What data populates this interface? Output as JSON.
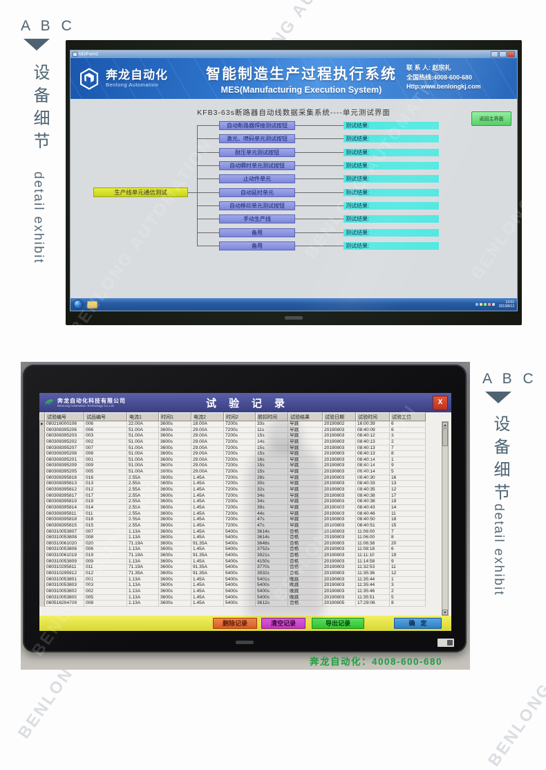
{
  "side_markers": {
    "abc": "A B C",
    "zh": "设备细节",
    "en": "detail exhibit"
  },
  "watermark": "BENLONG AUTOMATION",
  "top_monitor": {
    "window_title": "MDIForm1",
    "banner": {
      "logo_zh": "奔龙自动化",
      "logo_en": "Benlong Automation",
      "title_zh": "智能制造生产过程执行系统",
      "title_en": "MES(Manufacturing Execution System)",
      "contact_line1": "联 系 人: 赵宗礼",
      "contact_line2": "全国热线:4008-600-680",
      "contact_line3": "Http:www.benlongkj.com"
    },
    "subtitle": "KFB3-63s断路器自动线数据采集系统----单元测试界面",
    "return_button": "返回主界面",
    "source_node": "生产线单元通信测试",
    "result_label": "测试结果:",
    "flow_buttons": [
      "自动断路器焊接测试按钮",
      "激光、喷码单元测试按钮",
      "耐压单元测试按钮",
      "自动瞬时单元测试按钮",
      "止动件单元",
      "自动延时单元",
      "自动移印单元测试按钮",
      "手动生产线",
      "备用",
      "备用"
    ],
    "taskbar": {
      "time": "13:52",
      "date": "2019/8/13"
    }
  },
  "bottom_monitor": {
    "titlebar": {
      "company_zh": "奔龙自动化科技有限公司",
      "company_en": "BenLong Automation Technology Co.,Ltd",
      "title": "试验记录",
      "close": "X"
    },
    "table": {
      "headers": [
        "试验编号",
        "试品编号",
        "电流1",
        "时间1",
        "电流2",
        "时间2",
        "脱扣时间",
        "试验结果",
        "试验日期",
        "试验时间",
        "试验工位"
      ],
      "rows": [
        [
          "080216000106",
          "006",
          "22.00A",
          "3600s",
          "18.00A",
          "7200s",
          "33s",
          "早跳",
          "20190802",
          "16:00:39",
          "6"
        ],
        [
          "080308395206",
          "006",
          "51.00A",
          "3600s",
          "29.00A",
          "7200s",
          "11s",
          "早跳",
          "20190803",
          "08:40:09",
          "6"
        ],
        [
          "080308395203",
          "003",
          "51.00A",
          "3600s",
          "29.00A",
          "7200s",
          "15s",
          "早跳",
          "20190803",
          "08:40:12",
          "3"
        ],
        [
          "080308395202",
          "002",
          "51.00A",
          "3600s",
          "29.00A",
          "7200s",
          "14s",
          "早跳",
          "20190803",
          "08:40:13",
          "2"
        ],
        [
          "080308395207",
          "007",
          "51.00A",
          "3600s",
          "29.00A",
          "7200s",
          "15s",
          "早跳",
          "20190803",
          "08:40:13",
          "7"
        ],
        [
          "080308395208",
          "008",
          "51.00A",
          "3600s",
          "29.00A",
          "7200s",
          "15s",
          "早跳",
          "20190803",
          "08:40:13",
          "8"
        ],
        [
          "080308395201",
          "001",
          "51.00A",
          "3600s",
          "29.00A",
          "7200s",
          "16s",
          "早跳",
          "20190803",
          "08:40:14",
          "1"
        ],
        [
          "080308395209",
          "009",
          "51.00A",
          "3600s",
          "29.00A",
          "7200s",
          "15s",
          "早跳",
          "20190803",
          "08:40:14",
          "9"
        ],
        [
          "080308395205",
          "005",
          "51.00A",
          "3600s",
          "29.00A",
          "7200s",
          "15s",
          "早跳",
          "20190803",
          "08:40:14",
          "5"
        ],
        [
          "080308395816",
          "016",
          "2.55A",
          "3600s",
          "1.45A",
          "7200s",
          "28s",
          "早跳",
          "20190803",
          "08:40:30",
          "16"
        ],
        [
          "080308395813",
          "013",
          "2.55A",
          "3600s",
          "1.45A",
          "7200s",
          "30s",
          "早跳",
          "20190803",
          "08:40:33",
          "13"
        ],
        [
          "080308395812",
          "012",
          "2.55A",
          "3600s",
          "1.45A",
          "7200s",
          "32s",
          "早跳",
          "20190803",
          "08:40:35",
          "12"
        ],
        [
          "080308395817",
          "017",
          "2.55A",
          "3600s",
          "1.45A",
          "7200s",
          "34s",
          "早跳",
          "20190803",
          "08:40:38",
          "17"
        ],
        [
          "080308395819",
          "019",
          "2.55A",
          "3600s",
          "1.45A",
          "7200s",
          "34s",
          "早跳",
          "20190803",
          "08:40:38",
          "19"
        ],
        [
          "080308395814",
          "014",
          "2.55A",
          "3600s",
          "1.45A",
          "7200s",
          "39s",
          "早跳",
          "20190803",
          "08:40:43",
          "14"
        ],
        [
          "080308395811",
          "011",
          "2.55A",
          "3600s",
          "1.45A",
          "7200s",
          "44s",
          "早跳",
          "20190803",
          "08:40:46",
          "11"
        ],
        [
          "080308395818",
          "018",
          "2.55A",
          "3600s",
          "1.45A",
          "7200s",
          "47s",
          "早跳",
          "20190803",
          "08:40:50",
          "18"
        ],
        [
          "080308395815",
          "015",
          "2.55A",
          "3600s",
          "1.45A",
          "7200s",
          "47s",
          "早跳",
          "20190803",
          "08:40:51",
          "15"
        ],
        [
          "080310053807",
          "007",
          "1.13A",
          "3600s",
          "1.45A",
          "5400s",
          "3614s",
          "合格",
          "20190803",
          "11:06:00",
          "7"
        ],
        [
          "080310053808",
          "008",
          "1.13A",
          "3600s",
          "1.45A",
          "5400s",
          "3614s",
          "合格",
          "20190803",
          "11:06:00",
          "8"
        ],
        [
          "080310061020",
          "020",
          "71.19A",
          "3600s",
          "91.35A",
          "5400s",
          "3648s",
          "合格",
          "20190803",
          "11:06:38",
          "20"
        ],
        [
          "080310053806",
          "006",
          "1.13A",
          "3600s",
          "1.45A",
          "5400s",
          "3752s",
          "合格",
          "20190803",
          "11:08:18",
          "6"
        ],
        [
          "080310061019",
          "019",
          "71.19A",
          "3600s",
          "91.35A",
          "5400s",
          "3921s",
          "合格",
          "20190803",
          "11:11:10",
          "19"
        ],
        [
          "080310053809",
          "009",
          "1.13A",
          "3600s",
          "1.45A",
          "5400s",
          "4150s",
          "合格",
          "20190803",
          "11:14:58",
          "9"
        ],
        [
          "080310295811",
          "011",
          "71.19A",
          "3600s",
          "91.35A",
          "5400s",
          "3770s",
          "合格",
          "20190803",
          "11:32:53",
          "11"
        ],
        [
          "080310295912",
          "012",
          "71.35A",
          "3600s",
          "91.35A",
          "5400s",
          "3932s",
          "合格",
          "20190803",
          "11:35:36",
          "12"
        ],
        [
          "080310053801",
          "001",
          "1.13A",
          "3600s",
          "1.45A",
          "5400s",
          "5401s",
          "晚跳",
          "20190803",
          "11:35:44",
          "1"
        ],
        [
          "080310053803",
          "003",
          "1.13A",
          "3600s",
          "1.45A",
          "5400s",
          "5400s",
          "晚跳",
          "20190803",
          "11:35:44",
          "3"
        ],
        [
          "080310053802",
          "002",
          "1.13A",
          "3600s",
          "1.45A",
          "5400s",
          "5400s",
          "晚跳",
          "20190803",
          "11:35:46",
          "2"
        ],
        [
          "080310053805",
          "005",
          "1.13A",
          "3600s",
          "1.45A",
          "5400s",
          "5400s",
          "晚跳",
          "20190803",
          "11:35:51",
          "5"
        ],
        [
          "080516284708",
          "008",
          "1.13A",
          "3600s",
          "1.45A",
          "5400s",
          "3612s",
          "合格",
          "20190805",
          "17:29:06",
          "8"
        ]
      ]
    },
    "buttons": {
      "delete": "删除记录",
      "clear": "清空记录",
      "export": "导出记录",
      "confirm": "确定"
    },
    "footer_phone": "奔龙自动化：4008-600-680"
  },
  "colors": {
    "accent_blue": "#2e74cc",
    "flow_button": "#8890dc",
    "result_bar": "#54e8e2",
    "source_node_yellow": "#d8e032",
    "bar_yellow": "#e8e64a",
    "btn_delete": "#e06a3a",
    "btn_clear": "#cc44cc",
    "btn_export": "#44cc44",
    "btn_confirm": "#3b8fd4",
    "phone_green": "#1f9e3f"
  }
}
